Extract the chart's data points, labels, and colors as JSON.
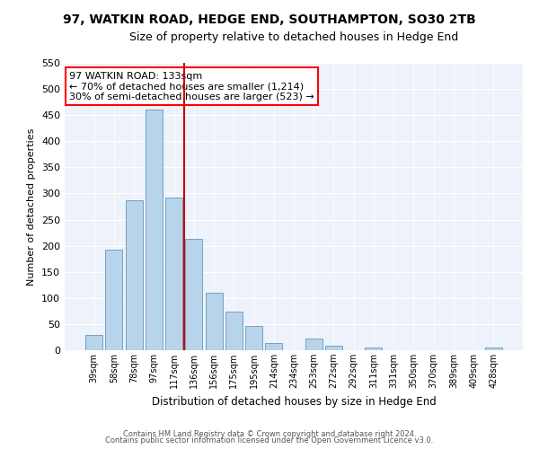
{
  "title": "97, WATKIN ROAD, HEDGE END, SOUTHAMPTON, SO30 2TB",
  "subtitle": "Size of property relative to detached houses in Hedge End",
  "bar_labels": [
    "39sqm",
    "58sqm",
    "78sqm",
    "97sqm",
    "117sqm",
    "136sqm",
    "156sqm",
    "175sqm",
    "195sqm",
    "214sqm",
    "234sqm",
    "253sqm",
    "272sqm",
    "292sqm",
    "311sqm",
    "331sqm",
    "350sqm",
    "370sqm",
    "389sqm",
    "409sqm",
    "428sqm"
  ],
  "bar_values": [
    30,
    192,
    287,
    460,
    293,
    213,
    110,
    74,
    47,
    13,
    0,
    22,
    8,
    0,
    5,
    0,
    0,
    0,
    0,
    0,
    5
  ],
  "bar_color": "#b8d4ea",
  "bar_edge_color": "#6699bb",
  "vline_color": "#cc0000",
  "vline_index": 5,
  "ylabel": "Number of detached properties",
  "xlabel": "Distribution of detached houses by size in Hedge End",
  "ylim": [
    0,
    550
  ],
  "yticks": [
    0,
    50,
    100,
    150,
    200,
    250,
    300,
    350,
    400,
    450,
    500,
    550
  ],
  "annotation_title": "97 WATKIN ROAD: 133sqm",
  "annotation_line1": "← 70% of detached houses are smaller (1,214)",
  "annotation_line2": "30% of semi-detached houses are larger (523) →",
  "footer1": "Contains HM Land Registry data © Crown copyright and database right 2024.",
  "footer2": "Contains public sector information licensed under the Open Government Licence v3.0.",
  "bg_color": "#eef2fa",
  "title_fontsize": 10,
  "subtitle_fontsize": 9
}
